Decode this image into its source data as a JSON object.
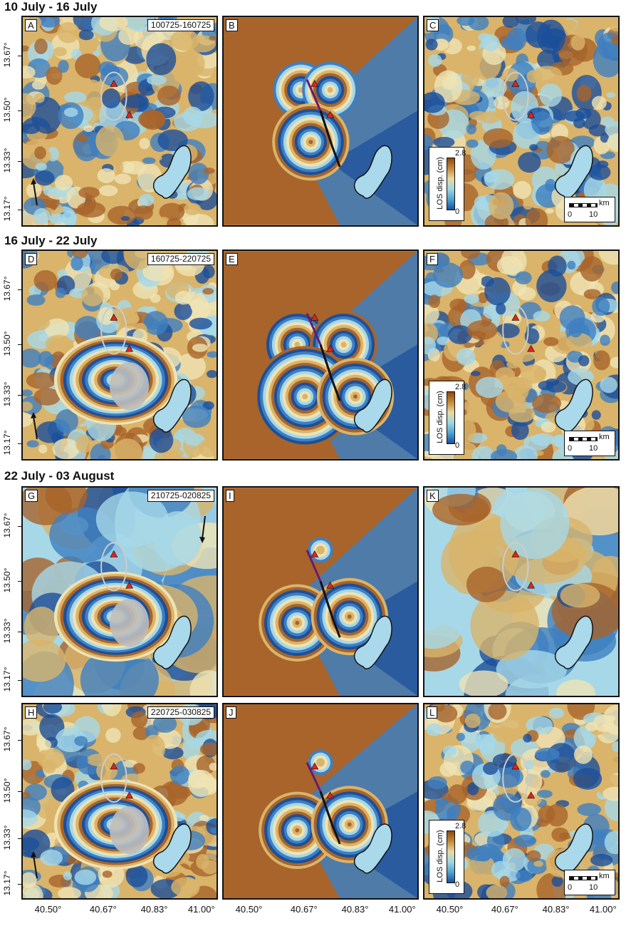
{
  "sections": {
    "s1": "10 July - 16 July",
    "s2": "16 July - 22 July",
    "s3": "22 July - 03 August"
  },
  "panels": {
    "A": {
      "letter": "A",
      "dates": "100725-160725"
    },
    "B": {
      "letter": "B"
    },
    "C": {
      "letter": "C"
    },
    "D": {
      "letter": "D",
      "dates": "160725-220725"
    },
    "E": {
      "letter": "E"
    },
    "F": {
      "letter": "F"
    },
    "G": {
      "letter": "G",
      "dates": "210725-020825"
    },
    "I": {
      "letter": "I"
    },
    "K": {
      "letter": "K"
    },
    "H": {
      "letter": "H",
      "dates": "220725-030825"
    },
    "J": {
      "letter": "J"
    },
    "L": {
      "letter": "L"
    }
  },
  "legend": {
    "title": "LOS disp. (cm)",
    "max": "2.8",
    "min": "0"
  },
  "scalebar": {
    "unit": "km",
    "zero": "0",
    "ten": "10"
  },
  "axes": {
    "lat_labels": [
      "13.67°",
      "13.50°",
      "13.33°",
      "13.17°"
    ],
    "lon_labels": [
      "40.50°",
      "40.67°",
      "40.83°",
      "41.00°"
    ]
  },
  "colors": {
    "brown": "#a8642a",
    "tan": "#d9b46a",
    "lightblue": "#a6d8e8",
    "blue": "#3f7fc0",
    "deepblue": "#1b4f9a",
    "marker": "#e0241b",
    "lake": "#a9d9ea"
  }
}
